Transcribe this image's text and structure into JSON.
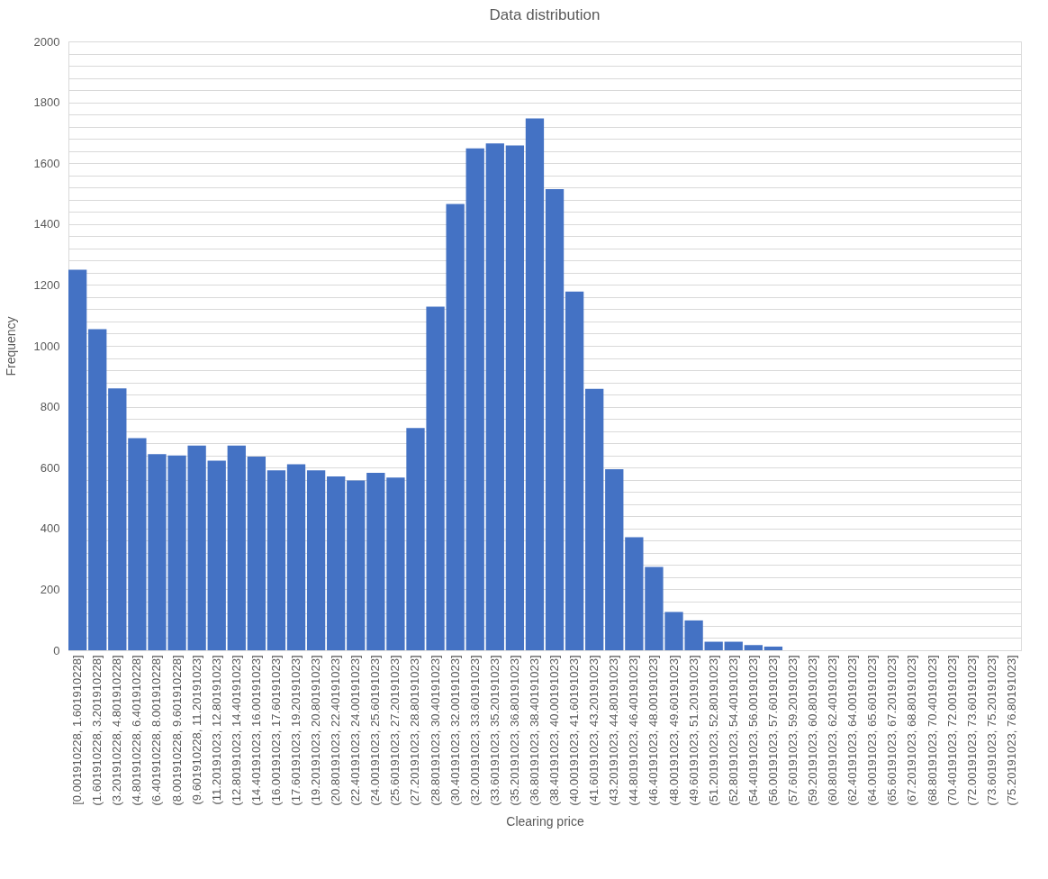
{
  "chart_data": {
    "type": "bar",
    "title": "Data distribution",
    "xlabel": "Clearing price",
    "ylabel": "Frequency",
    "categories": [
      "[0.001910228, 1.601910228]",
      "(1.601910228, 3.201910228]",
      "(3.201910228, 4.801910228]",
      "(4.801910228, 6.401910228]",
      "(6.401910228, 8.001910228]",
      "(8.001910228, 9.601910228]",
      "(9.601910228, 11.20191023]",
      "(11.20191023, 12.80191023]",
      "(12.80191023, 14.40191023]",
      "(14.40191023, 16.00191023]",
      "(16.00191023, 17.60191023]",
      "(17.60191023, 19.20191023]",
      "(19.20191023, 20.80191023]",
      "(20.80191023, 22.40191023]",
      "(22.40191023, 24.00191023]",
      "(24.00191023, 25.60191023]",
      "(25.60191023, 27.20191023]",
      "(27.20191023, 28.80191023]",
      "(28.80191023, 30.40191023]",
      "(30.40191023, 32.00191023]",
      "(32.00191023, 33.60191023]",
      "(33.60191023, 35.20191023]",
      "(35.20191023, 36.80191023]",
      "(36.80191023, 38.40191023]",
      "(38.40191023, 40.00191023]",
      "(40.00191023, 41.60191023]",
      "(41.60191023, 43.20191023]",
      "(43.20191023, 44.80191023]",
      "(44.80191023, 46.40191023]",
      "(46.40191023, 48.00191023]",
      "(48.00191023, 49.60191023]",
      "(49.60191023, 51.20191023]",
      "(51.20191023, 52.80191023]",
      "(52.80191023, 54.40191023]",
      "(54.40191023, 56.00191023]",
      "(56.00191023, 57.60191023]",
      "(57.60191023, 59.20191023]",
      "(59.20191023, 60.80191023]",
      "(60.80191023, 62.40191023]",
      "(62.40191023, 64.00191023]",
      "(64.00191023, 65.60191023]",
      "(65.60191023, 67.20191023]",
      "(67.20191023, 68.80191023]",
      "(68.80191023, 70.40191023]",
      "(70.40191023, 72.00191023]",
      "(72.00191023, 73.60191023]",
      "(73.60191023, 75.20191023]",
      "(75.20191023, 76.80191023]"
    ],
    "values": [
      1250,
      1055,
      860,
      697,
      644,
      640,
      672,
      623,
      672,
      636,
      591,
      611,
      591,
      571,
      558,
      583,
      567,
      730,
      1129,
      1466,
      1649,
      1665,
      1658,
      1747,
      1515,
      1178,
      859,
      595,
      371,
      274,
      126,
      98,
      28,
      28,
      17,
      12,
      0,
      0,
      0,
      0,
      0,
      0,
      0,
      0,
      0,
      0,
      0,
      0
    ],
    "color": "#4472c4",
    "ylim": [
      0,
      2000
    ],
    "yticks": [
      0,
      {
        "value": 40,
        "label": null
      },
      {
        "value": 80,
        "label": null
      },
      {
        "value": 120,
        "label": null
      },
      {
        "value": 160,
        "label": null
      },
      200,
      {
        "value": 240,
        "label": null
      },
      {
        "value": 280,
        "label": null
      },
      {
        "value": 320,
        "label": null
      },
      {
        "value": 360,
        "label": null
      },
      400,
      {
        "value": 440,
        "label": null
      },
      {
        "value": 480,
        "label": null
      },
      {
        "value": 520,
        "label": null
      },
      {
        "value": 560,
        "label": null
      },
      600,
      {
        "value": 640,
        "label": null
      },
      {
        "value": 680,
        "label": null
      },
      {
        "value": 720,
        "label": null
      },
      {
        "value": 760,
        "label": null
      },
      800,
      {
        "value": 840,
        "label": null
      },
      {
        "value": 880,
        "label": null
      },
      {
        "value": 920,
        "label": null
      },
      {
        "value": 960,
        "label": null
      },
      1000,
      {
        "value": 1040,
        "label": null
      },
      {
        "value": 1080,
        "label": null
      },
      {
        "value": 1120,
        "label": null
      },
      {
        "value": 1160,
        "label": null
      },
      1200,
      {
        "value": 1240,
        "label": null
      },
      {
        "value": 1280,
        "label": null
      },
      {
        "value": 1320,
        "label": null
      },
      {
        "value": 1360,
        "label": null
      },
      1400,
      {
        "value": 1440,
        "label": null
      },
      {
        "value": 1480,
        "label": null
      },
      {
        "value": 1520,
        "label": null
      },
      {
        "value": 1560,
        "label": null
      },
      1600,
      {
        "value": 1640,
        "label": null
      },
      {
        "value": 1680,
        "label": null
      },
      {
        "value": 1720,
        "label": null
      },
      {
        "value": 1760,
        "label": null
      },
      1800,
      {
        "value": 1840,
        "label": null
      },
      {
        "value": 1880,
        "label": null
      },
      {
        "value": 1920,
        "label": null
      },
      {
        "value": 1960,
        "label": null
      },
      2000
    ],
    "grid": "y"
  }
}
